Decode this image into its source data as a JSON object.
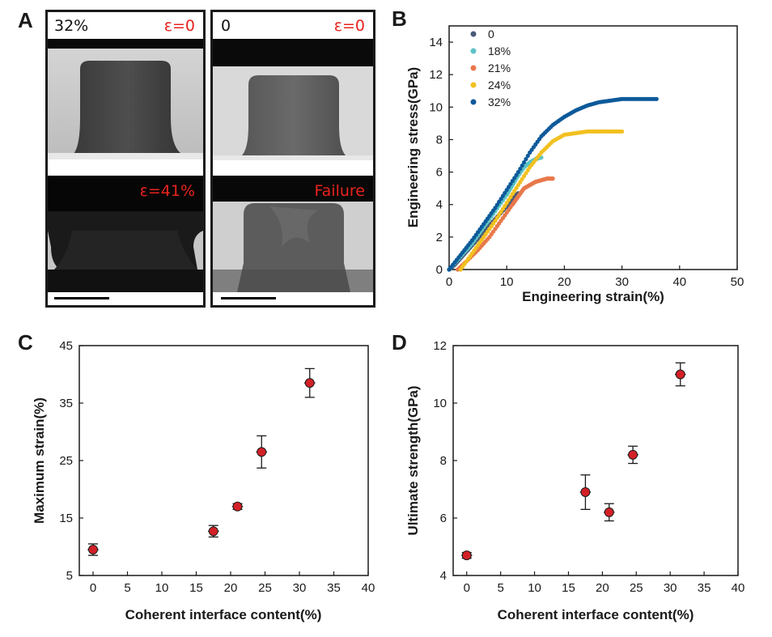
{
  "panels": {
    "a": {
      "letter": "A",
      "left_label": "32%",
      "right_label": "0",
      "strain_zero_left": "ε=0",
      "strain_zero_right": "ε=0",
      "strain_41": "ε=41%",
      "failure": "Failure"
    },
    "b": {
      "letter": "B"
    },
    "c": {
      "letter": "C"
    },
    "d": {
      "letter": "D"
    }
  },
  "colors": {
    "marker_red": "#d32027",
    "label_red": "#e8231d",
    "s0": "#4a5a78",
    "s18": "#5cc3c6",
    "s21": "#e8784a",
    "s24": "#f2c020",
    "s32": "#0d5a9a"
  },
  "chart_data": [
    {
      "id": "b",
      "type": "scatter",
      "title": "",
      "xlabel": "Engineering strain(%)",
      "ylabel": "Engineering stress(GPa)",
      "xlim": [
        0,
        50
      ],
      "ylim": [
        0,
        15
      ],
      "xticks": [
        "0",
        "10",
        "20",
        "30",
        "40",
        "50"
      ],
      "yticks": [
        "0",
        "2",
        "4",
        "6",
        "8",
        "10",
        "12",
        "14"
      ],
      "legend_position": "top-left",
      "series": [
        {
          "name": "0",
          "color": "#4a5a78",
          "x": [
            0,
            1,
            2,
            3,
            4,
            5,
            6,
            7,
            8,
            9,
            10,
            11,
            12
          ],
          "y": [
            0,
            0.3,
            0.7,
            1.1,
            1.5,
            1.9,
            2.3,
            2.7,
            3.1,
            3.5,
            3.9,
            4.4,
            4.7
          ]
        },
        {
          "name": "18%",
          "color": "#5cc3c6",
          "x": [
            0,
            2,
            4,
            6,
            8,
            10,
            11,
            12,
            13,
            14,
            15,
            16
          ],
          "y": [
            0,
            0.8,
            1.6,
            2.6,
            3.6,
            4.6,
            5.2,
            5.8,
            6.3,
            6.6,
            6.8,
            6.9
          ]
        },
        {
          "name": "21%",
          "color": "#e8784a",
          "x": [
            1.5,
            3,
            5,
            7,
            9,
            11,
            12,
            13,
            14,
            15,
            16,
            17,
            18
          ],
          "y": [
            0,
            0.5,
            1.2,
            2.0,
            3.0,
            4.0,
            4.5,
            5.0,
            5.2,
            5.4,
            5.5,
            5.6,
            5.6
          ]
        },
        {
          "name": "24%",
          "color": "#f2c020",
          "x": [
            2,
            4,
            6,
            8,
            10,
            12,
            14,
            16,
            18,
            20,
            22,
            24,
            26,
            28,
            30
          ],
          "y": [
            0,
            1.0,
            2.0,
            3.0,
            4.1,
            5.2,
            6.3,
            7.2,
            7.9,
            8.3,
            8.4,
            8.5,
            8.5,
            8.5,
            8.5
          ]
        },
        {
          "name": "32%",
          "color": "#0d5a9a",
          "x": [
            0,
            2,
            4,
            6,
            8,
            10,
            12,
            14,
            16,
            18,
            20,
            22,
            24,
            26,
            28,
            30,
            32,
            34,
            36
          ],
          "y": [
            0,
            0.9,
            1.8,
            2.8,
            3.8,
            4.9,
            6.0,
            7.2,
            8.2,
            8.9,
            9.4,
            9.8,
            10.1,
            10.3,
            10.4,
            10.5,
            10.5,
            10.5,
            10.5
          ]
        }
      ]
    },
    {
      "id": "c",
      "type": "scatter",
      "title": "",
      "xlabel": "Coherent interface content(%)",
      "ylabel": "Maximum strain(%)",
      "xlim": [
        -2,
        40
      ],
      "ylim": [
        5,
        45
      ],
      "xticks": [
        "0",
        "5",
        "10",
        "15",
        "20",
        "25",
        "30",
        "35",
        "40"
      ],
      "yticks": [
        "5",
        "15",
        "25",
        "35",
        "45"
      ],
      "points": [
        {
          "x": 0,
          "y": 9.5,
          "err": 1.0,
          "xerr": 0.8
        },
        {
          "x": 17.5,
          "y": 12.7,
          "err": 1.0,
          "xerr": 0.8
        },
        {
          "x": 21,
          "y": 17,
          "err": 0.5,
          "xerr": 0.8
        },
        {
          "x": 24.5,
          "y": 26.5,
          "err": 2.8,
          "xerr": 0.8
        },
        {
          "x": 31.5,
          "y": 38.5,
          "err": 2.5,
          "xerr": 0.8
        }
      ]
    },
    {
      "id": "d",
      "type": "scatter",
      "title": "",
      "xlabel": "Coherent interface content(%)",
      "ylabel": "Ultimate strength(GPa)",
      "xlim": [
        -2,
        40
      ],
      "ylim": [
        4,
        12
      ],
      "xticks": [
        "0",
        "5",
        "10",
        "15",
        "20",
        "25",
        "30",
        "35",
        "40"
      ],
      "yticks": [
        "4",
        "6",
        "8",
        "10",
        "12"
      ],
      "points": [
        {
          "x": 0,
          "y": 4.7,
          "err": 0.1,
          "xerr": 0.8
        },
        {
          "x": 17.5,
          "y": 6.9,
          "err": 0.6,
          "xerr": 0.8
        },
        {
          "x": 21,
          "y": 6.2,
          "err": 0.3,
          "xerr": 0.8
        },
        {
          "x": 24.5,
          "y": 8.2,
          "err": 0.3,
          "xerr": 0.8
        },
        {
          "x": 31.5,
          "y": 11.0,
          "err": 0.4,
          "xerr": 0.8
        }
      ]
    }
  ]
}
